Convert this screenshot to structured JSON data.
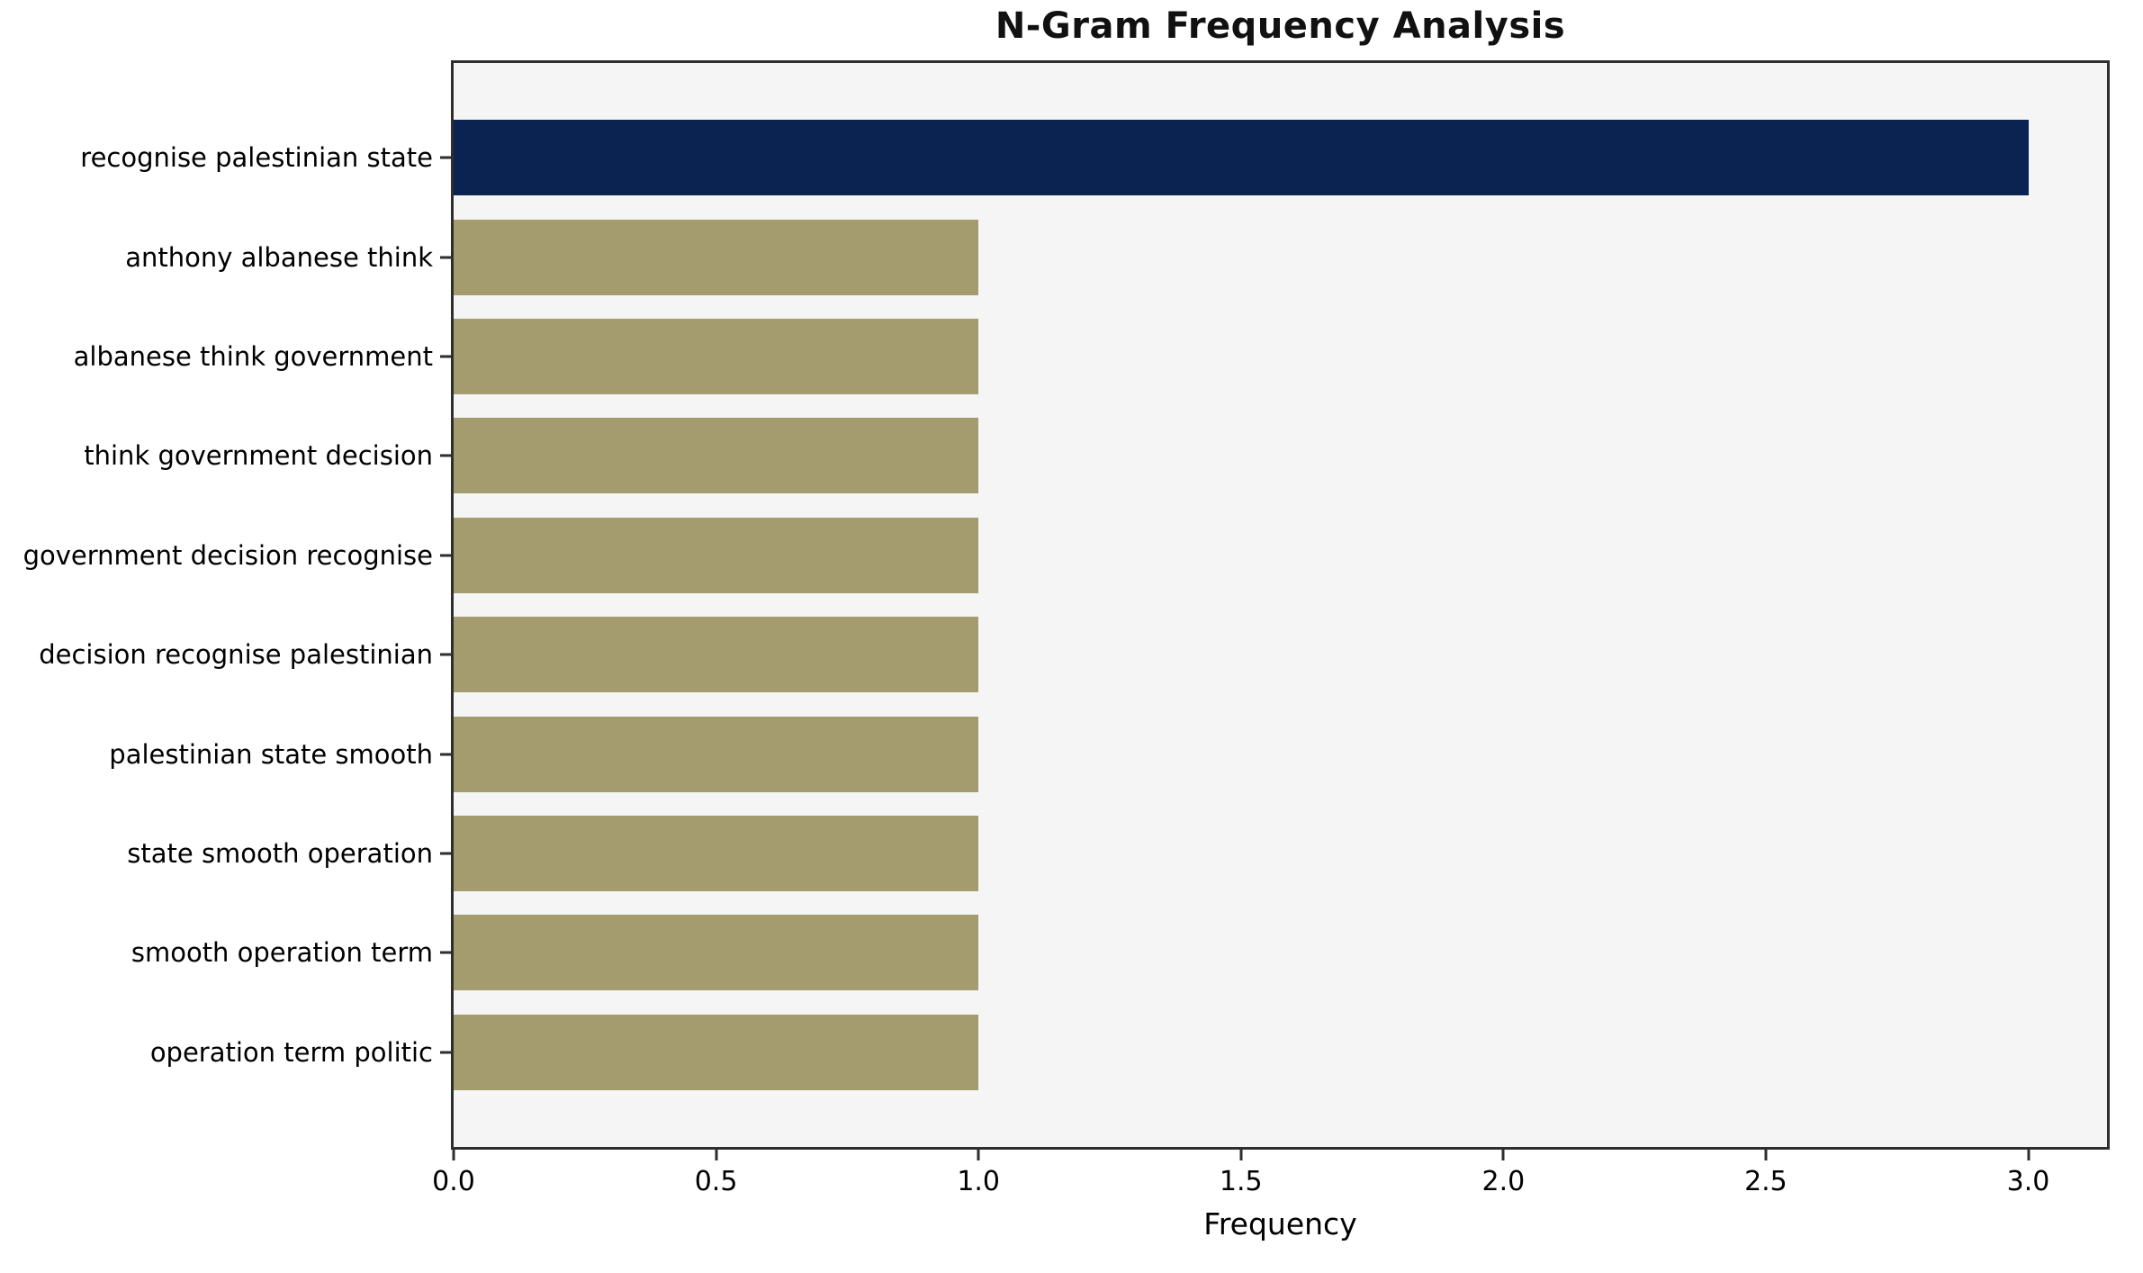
{
  "chart_data": {
    "type": "bar",
    "orientation": "horizontal",
    "title": "N-Gram Frequency Analysis",
    "xlabel": "Frequency",
    "ylabel": "",
    "categories": [
      "recognise palestinian state",
      "anthony albanese think",
      "albanese think government",
      "think government decision",
      "government decision recognise",
      "decision recognise palestinian",
      "palestinian state smooth",
      "state smooth operation",
      "smooth operation term",
      "operation term politic"
    ],
    "values": [
      3,
      1,
      1,
      1,
      1,
      1,
      1,
      1,
      1,
      1
    ],
    "xlim": [
      0,
      3.15
    ],
    "xticks": [
      0.0,
      0.5,
      1.0,
      1.5,
      2.0,
      2.5,
      3.0
    ],
    "xtick_labels": [
      "0.0",
      "0.5",
      "1.0",
      "1.5",
      "2.0",
      "2.5",
      "3.0"
    ],
    "grid": false,
    "legend": null,
    "colors": {
      "highlight_bar": "#0a2351",
      "default_bar": "#a49c6f",
      "plot_background": "#f5f5f5",
      "figure_background": "#ffffff",
      "spine": "#2e2e2e",
      "text": "#000000"
    },
    "bar_colors": [
      "#0a2351",
      "#a49c6f",
      "#a49c6f",
      "#a49c6f",
      "#a49c6f",
      "#a49c6f",
      "#a49c6f",
      "#a49c6f",
      "#a49c6f",
      "#a49c6f"
    ]
  }
}
